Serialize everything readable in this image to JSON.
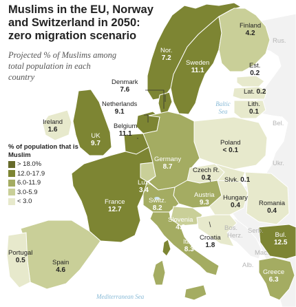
{
  "title": "Muslims in the EU, Norway and Switzerland in 2050: zero migration scenario",
  "subtitle": "Projected % of Muslims among total population in each country",
  "legend": {
    "heading": "% of population that is Muslim",
    "items": [
      {
        "label": "> 18.0%",
        "color": "#666a2a"
      },
      {
        "label": "12.0-17.9",
        "color": "#7d8533"
      },
      {
        "label": "6.0-11.9",
        "color": "#a4ac62"
      },
      {
        "label": "3.0-5.9",
        "color": "#c9cf98"
      },
      {
        "label": "< 3.0",
        "color": "#e7e9cc"
      }
    ]
  },
  "colors": {
    "water": "#ffffff",
    "non_eu": "#f2f2f2",
    "border": "#ffffff",
    "lake": "#cfe4ef",
    "leader": "#333333"
  },
  "seas": {
    "baltic": "Baltic Sea",
    "mediterranean": "Mediterranean Sea"
  },
  "countries": {
    "finland": {
      "name": "Finland",
      "value": "4.2"
    },
    "norway": {
      "name": "Nor.",
      "value": "7.2"
    },
    "sweden": {
      "name": "Sweden",
      "value": "11.1"
    },
    "estonia": {
      "name": "Est.",
      "value": "0.2"
    },
    "latvia": {
      "name": "Lat.",
      "value": "0.2"
    },
    "lithuania": {
      "name": "Lith.",
      "value": "0.1"
    },
    "denmark": {
      "name": "Denmark",
      "value": "7.6"
    },
    "netherlands": {
      "name": "Netherlands",
      "value": "9.1"
    },
    "belgium": {
      "name": "Belgium",
      "value": "11.1"
    },
    "ireland": {
      "name": "Ireland",
      "value": "1.6"
    },
    "uk": {
      "name": "UK",
      "value": "9.7"
    },
    "poland": {
      "name": "Poland",
      "value": "< 0.1"
    },
    "germany": {
      "name": "Germany",
      "value": "8.7"
    },
    "czech": {
      "name": "Czech R.",
      "value": "0.2"
    },
    "slovakia": {
      "name": "Slvk.",
      "value": "0.1"
    },
    "luxembourg": {
      "name": "Lux.",
      "value": "3.4"
    },
    "switzerland": {
      "name": "Switz.",
      "value": "8.2"
    },
    "austria": {
      "name": "Austria",
      "value": "9.3"
    },
    "hungary": {
      "name": "Hungary",
      "value": "0.4"
    },
    "romania": {
      "name": "Romania",
      "value": "0.4"
    },
    "france": {
      "name": "France",
      "value": "12.7"
    },
    "slovenia": {
      "name": "Slovenia",
      "value": "4.3"
    },
    "croatia": {
      "name": "Croatia",
      "value": "1.8"
    },
    "italy": {
      "name": "Italy",
      "value": "8.3"
    },
    "bulgaria": {
      "name": "Bul.",
      "value": "12.5"
    },
    "greece": {
      "name": "Greece",
      "value": "6.3"
    },
    "portugal": {
      "name": "Portugal",
      "value": "0.5"
    },
    "spain": {
      "name": "Spain",
      "value": "4.6"
    }
  },
  "non_eu_labels": {
    "rus": "Rus.",
    "bel": "Bel.",
    "ukr": "Ukr.",
    "serb": "Serb.",
    "bos": "Bos.",
    "herz": "Herz.",
    "mac": "Mac.",
    "alb": "Alb."
  }
}
